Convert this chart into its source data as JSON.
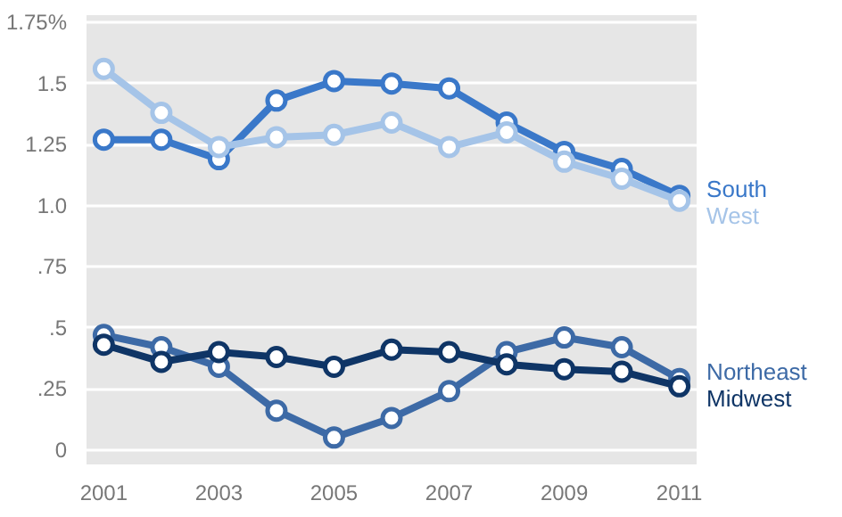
{
  "chart_data": {
    "type": "line",
    "x": [
      2001,
      2002,
      2003,
      2004,
      2005,
      2006,
      2007,
      2008,
      2009,
      2010,
      2011
    ],
    "series": [
      {
        "name": "South",
        "color": "#3a78c9",
        "values": [
          1.27,
          1.27,
          1.19,
          1.43,
          1.51,
          1.5,
          1.48,
          1.34,
          1.22,
          1.15,
          1.04
        ]
      },
      {
        "name": "West",
        "color": "#a5c4e8",
        "values": [
          1.56,
          1.38,
          1.24,
          1.28,
          1.29,
          1.34,
          1.24,
          1.3,
          1.18,
          1.11,
          1.02
        ]
      },
      {
        "name": "Northeast",
        "color": "#3d6aa6",
        "values": [
          0.47,
          0.42,
          0.34,
          0.16,
          0.05,
          0.13,
          0.24,
          0.4,
          0.46,
          0.42,
          0.29
        ]
      },
      {
        "name": "Midwest",
        "color": "#0f3566",
        "values": [
          0.43,
          0.36,
          0.4,
          0.38,
          0.34,
          0.41,
          0.4,
          0.35,
          0.33,
          0.32,
          0.26
        ]
      }
    ],
    "xlim": [
      2000.7,
      2011.3
    ],
    "xticks": [
      2001,
      2003,
      2005,
      2007,
      2009,
      2011
    ],
    "ylim": [
      -0.06,
      1.78
    ],
    "yticks": [
      {
        "value": 0,
        "label": "0"
      },
      {
        "value": 0.25,
        "label": ".25"
      },
      {
        "value": 0.5,
        "label": ".5"
      },
      {
        "value": 0.75,
        "label": ".75"
      },
      {
        "value": 1.0,
        "label": "1.0"
      },
      {
        "value": 1.25,
        "label": "1.25"
      },
      {
        "value": 1.5,
        "label": "1.5"
      },
      {
        "value": 1.75,
        "label": "1.75%"
      }
    ],
    "grid": "y",
    "marker": "circle",
    "line_style": "solid"
  }
}
